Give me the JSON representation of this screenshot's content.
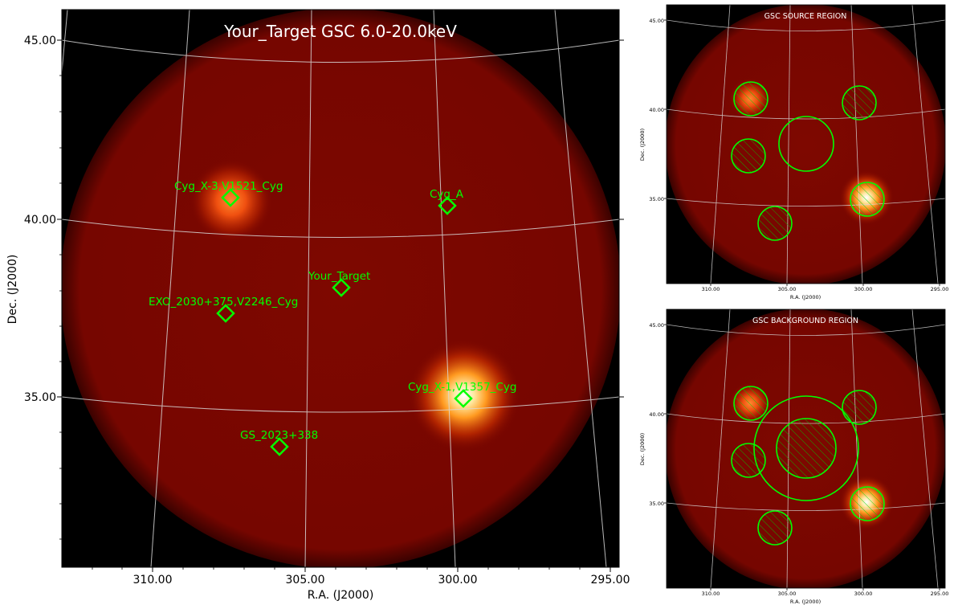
{
  "main": {
    "title": "Your_Target GSC 6.0-20.0keV",
    "xlabel": "R.A. (J2000)",
    "ylabel": "Dec. (J2000)",
    "xticks": [
      "310.00",
      "305.00",
      "300.00",
      "295.00"
    ],
    "yticks": [
      "45.00",
      "40.00",
      "35.00"
    ],
    "sources": [
      {
        "name": "Cyg_X-3,V1521_Cyg"
      },
      {
        "name": "Cyg_A"
      },
      {
        "name": "Your_Target"
      },
      {
        "name": "EXO_2030+375,V2246_Cyg"
      },
      {
        "name": "Cyg_X-1,V1357_Cyg"
      },
      {
        "name": "GS_2023+338"
      }
    ]
  },
  "source_region": {
    "title": "GSC SOURCE REGION",
    "xlabel": "R.A. (J2000)",
    "ylabel": "Dec. (J2000)",
    "xticks": [
      "310.00",
      "305.00",
      "300.00",
      "295.00"
    ],
    "yticks": [
      "45.00",
      "40.00",
      "35.00"
    ]
  },
  "background_region": {
    "title": "GSC BACKGROUND REGION",
    "xlabel": "R.A. (J2000)",
    "ylabel": "Dec. (J2000)",
    "xticks": [
      "310.00",
      "305.00",
      "300.00",
      "295.00"
    ],
    "yticks": [
      "45.00",
      "40.00",
      "35.00"
    ]
  },
  "colors": {
    "background": "#000000",
    "field": "#7a0500",
    "marker": "#00ff00",
    "grid": "#d9d9d9",
    "title": "#ffffff"
  }
}
